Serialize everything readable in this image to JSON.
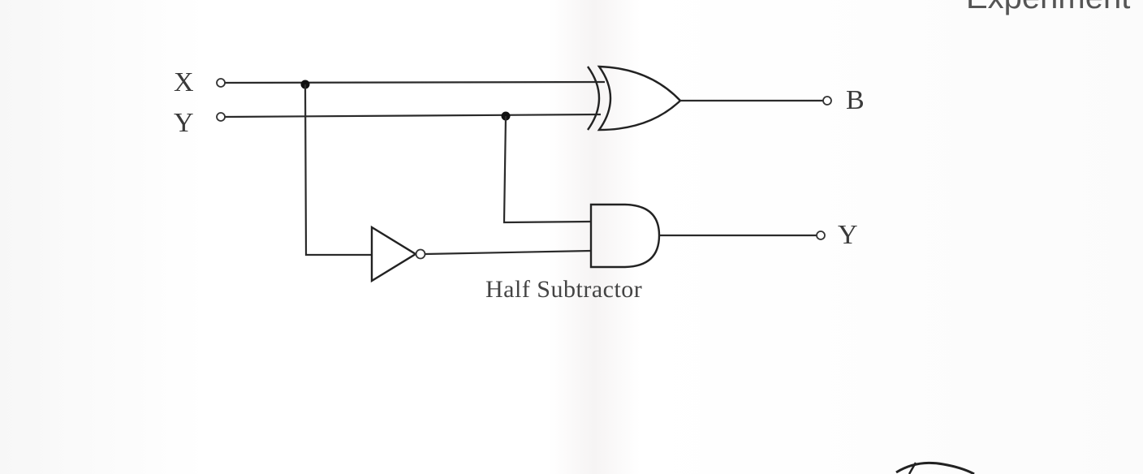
{
  "labels": {
    "input_x": "X",
    "input_y": "Y",
    "output_b": "B",
    "output_y": "Y",
    "caption": "Half Subtractor",
    "corner_partial": "Experiment"
  },
  "colors": {
    "ink": "#222222",
    "paper": "#ffffff"
  },
  "gates": [
    "xor-gate",
    "and-gate",
    "not-gate"
  ]
}
